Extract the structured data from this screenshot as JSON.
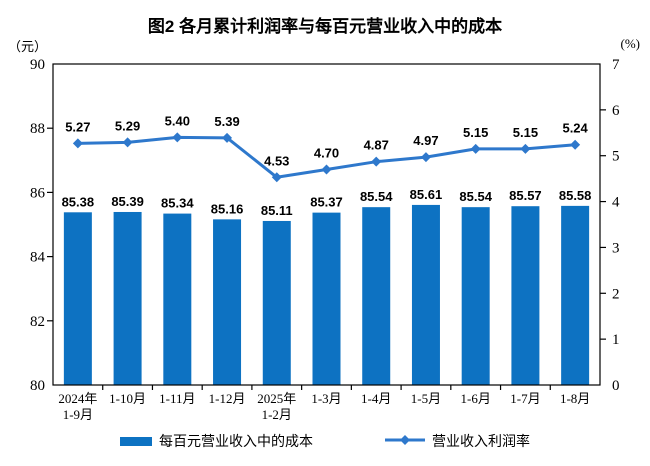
{
  "chart_data": {
    "type": "bar",
    "subtype": "bar+line dual axis",
    "title": "图2 各月累计利润率与每百元营业收入中的成本",
    "categories": [
      "2024年\n1-9月",
      "1-10月",
      "1-11月",
      "1-12月",
      "2025年\n1-2月",
      "1-3月",
      "1-4月",
      "1-5月",
      "1-6月",
      "1-7月",
      "1-8月"
    ],
    "series": [
      {
        "name": "每百元营业收入中的成本",
        "type": "bar",
        "axis": "left",
        "color": "#0d72c2",
        "values": [
          85.38,
          85.39,
          85.34,
          85.16,
          85.11,
          85.37,
          85.54,
          85.61,
          85.54,
          85.57,
          85.58
        ],
        "labels": [
          "85.38",
          "85.39",
          "85.34",
          "85.16",
          "85.11",
          "85.37",
          "85.54",
          "85.61",
          "85.54",
          "85.57",
          "85.58"
        ]
      },
      {
        "name": "营业收入利润率",
        "type": "line",
        "axis": "right",
        "color": "#2e78cc",
        "values": [
          5.27,
          5.29,
          5.4,
          5.39,
          4.53,
          4.7,
          4.87,
          4.97,
          5.15,
          5.15,
          5.24
        ],
        "labels": [
          "5.27",
          "5.29",
          "5.40",
          "5.39",
          "4.53",
          "4.70",
          "4.87",
          "4.97",
          "5.15",
          "5.15",
          "5.24"
        ]
      }
    ],
    "left_axis": {
      "unit": "（元）",
      "min": 80,
      "max": 90,
      "step": 2,
      "ticks": [
        "80",
        "82",
        "84",
        "86",
        "88",
        "90"
      ]
    },
    "right_axis": {
      "unit": "(%)",
      "min": 0,
      "max": 7,
      "step": 1,
      "ticks": [
        "0",
        "1",
        "2",
        "3",
        "4",
        "5",
        "6",
        "7"
      ]
    },
    "legend_position": "bottom",
    "grid": false,
    "frame_color": "#000000"
  }
}
